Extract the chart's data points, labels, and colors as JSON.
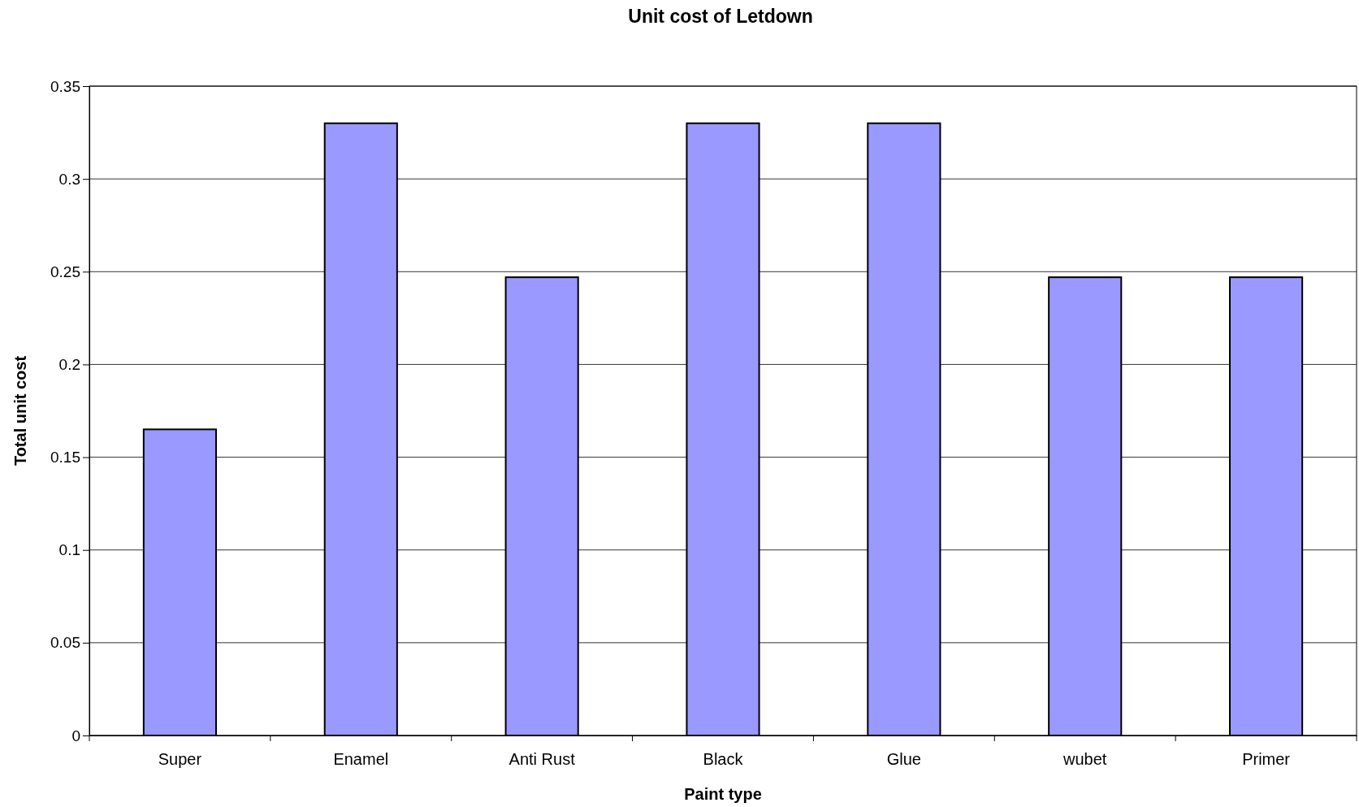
{
  "chart_data": {
    "type": "bar",
    "title": "Unit cost of Letdown",
    "xlabel": "Paint type",
    "ylabel": "Total unit cost",
    "categories": [
      "Super",
      "Enamel",
      "Anti Rust",
      "Black",
      "Glue",
      "wubet",
      "Primer"
    ],
    "values": [
      0.165,
      0.33,
      0.247,
      0.33,
      0.33,
      0.247,
      0.247
    ],
    "color": "#9999ff",
    "ylim": [
      0,
      0.35
    ],
    "yticks": [
      0,
      0.05,
      0.1,
      0.15,
      0.2,
      0.25,
      0.3,
      0.35
    ],
    "grid": "y"
  }
}
